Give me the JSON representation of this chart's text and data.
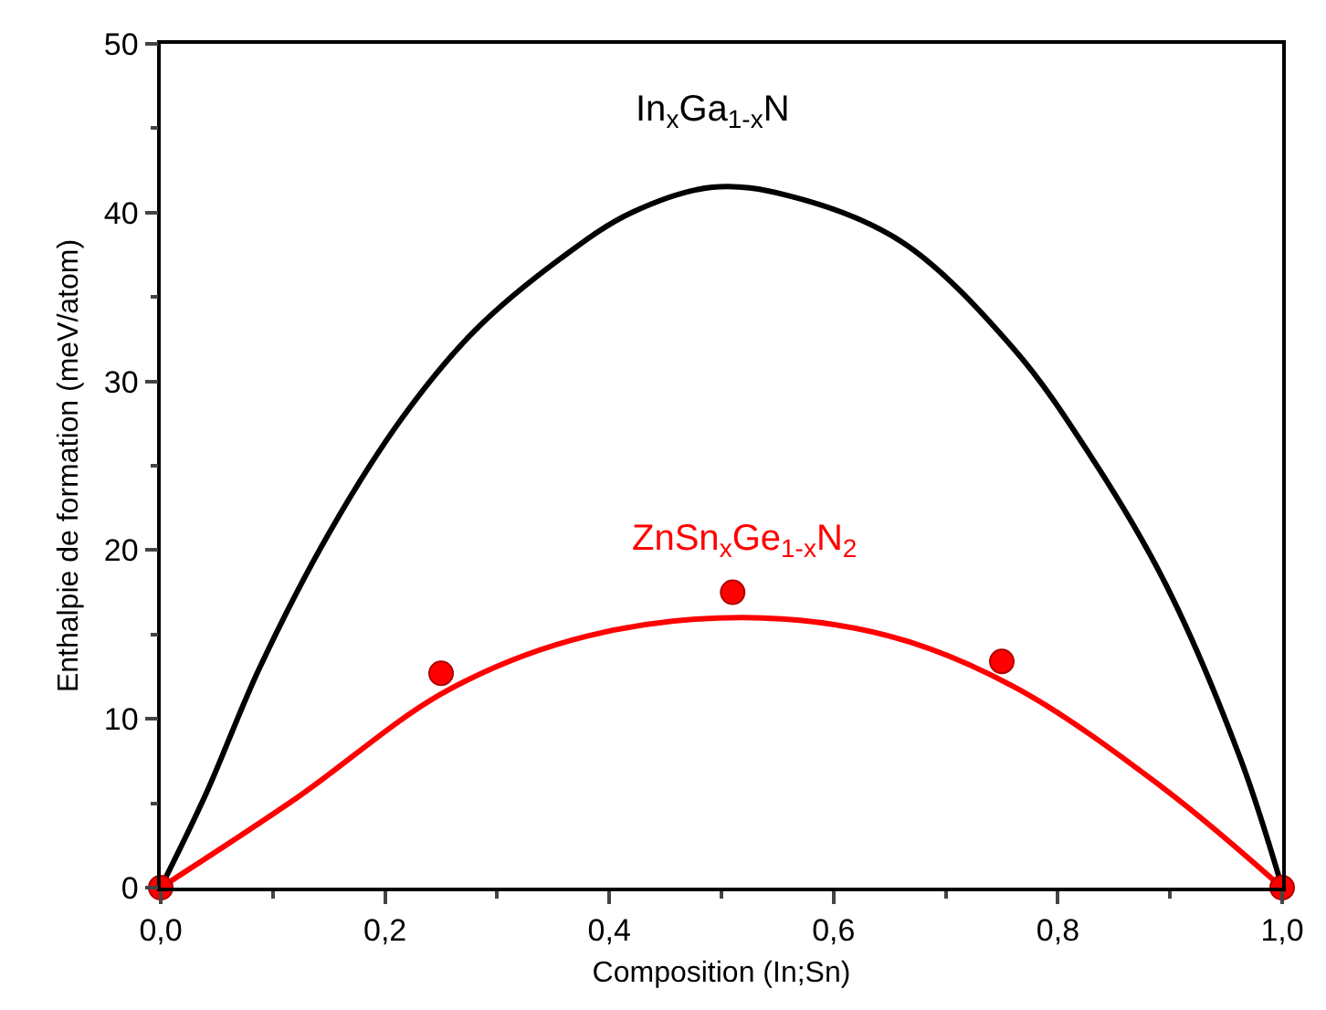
{
  "chart_data": {
    "type": "line",
    "xlabel": "Composition (In;Sn)",
    "ylabel": "Enthalpie de formation (meV/atom)",
    "xlim": [
      0,
      1
    ],
    "ylim": [
      0,
      50
    ],
    "xticks": [
      {
        "value": 0,
        "label": "0,0"
      },
      {
        "value": 0.2,
        "label": "0,2"
      },
      {
        "value": 0.4,
        "label": "0,4"
      },
      {
        "value": 0.6,
        "label": "0,6"
      },
      {
        "value": 0.8,
        "label": "0,8"
      },
      {
        "value": 1,
        "label": "1,0"
      }
    ],
    "yticks": [
      0,
      10,
      20,
      30,
      40,
      50
    ],
    "grid": false,
    "legend": false,
    "series": [
      {
        "name": "In$_{x}$Ga$_{1-x}$N",
        "color": "#000000",
        "line_style": "solid",
        "marker": "none",
        "x": [
          0,
          0.04,
          0.088,
          0.15,
          0.216,
          0.28,
          0.357,
          0.42,
          0.492,
          0.56,
          0.66,
          0.761,
          0.83,
          0.896,
          0.963,
          1
        ],
        "values": [
          0,
          5.5,
          13,
          21,
          27.9,
          33,
          37.3,
          40,
          41.5,
          41,
          38.3,
          31.9,
          25.5,
          18,
          7.6,
          0
        ]
      },
      {
        "name": "ZnSn$_{x}$Ge$_{1-x}$N$_{2}$",
        "color": "#ff0000",
        "line_style": "solid",
        "marker": "none",
        "x": [
          0,
          0.121,
          0.256,
          0.38,
          0.52,
          0.65,
          0.761,
          0.896,
          1
        ],
        "values": [
          0,
          5.3,
          11.7,
          14.9,
          16,
          14.9,
          11.9,
          5.8,
          0
        ]
      },
      {
        "color": "#ff0000",
        "type": "scatter",
        "marker": "circle",
        "x": [
          0,
          0.25,
          0.51,
          0.75,
          1
        ],
        "values": [
          0,
          12.7,
          17.5,
          13.4,
          0
        ]
      }
    ]
  }
}
